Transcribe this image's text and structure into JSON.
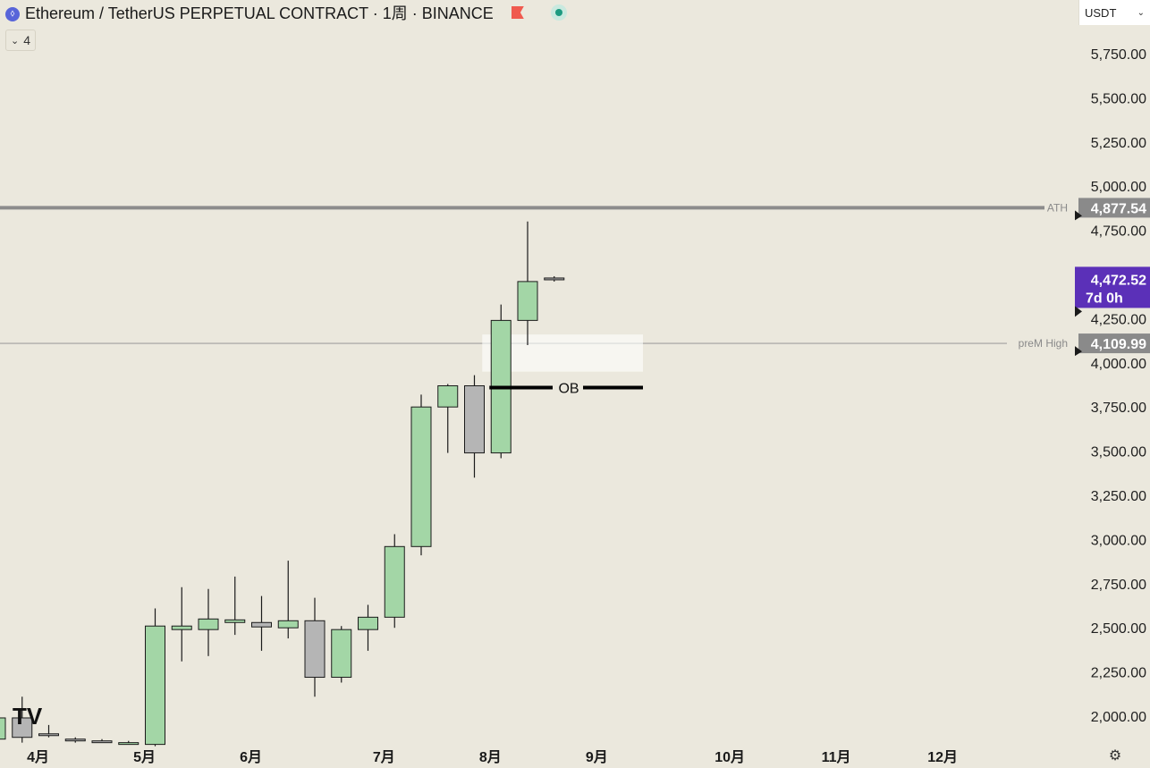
{
  "header": {
    "coin_icon_glyph": "⬨",
    "symbol_title": "Ethereum / TetherUS PERPETUAL CONTRACT · 1周 · BINANCE",
    "indicator_count": "4",
    "currency": "USDT",
    "icons": [
      "ethereum-coin-icon",
      "red-flag-icon",
      "market-status-icon",
      "chevron-down-icon",
      "settings-icon"
    ]
  },
  "chart_data": {
    "type": "candlestick",
    "timeframe": "1周",
    "colors": {
      "up": "#a3d6a6",
      "down": "#b5b5b5",
      "outline": "#1a1a1a",
      "last_price": "#5b30b8",
      "level_label": "#8a8a8a"
    },
    "candles": [
      {
        "open": 1870,
        "high": 2110,
        "low": 1850,
        "close": 1990
      },
      {
        "open": 1990,
        "high": 2110,
        "low": 1850,
        "close": 1880
      },
      {
        "open": 1900,
        "high": 1950,
        "low": 1880,
        "close": 1890
      },
      {
        "open": 1870,
        "high": 1880,
        "low": 1850,
        "close": 1860
      },
      {
        "open": 1860,
        "high": 1870,
        "low": 1850,
        "close": 1855
      },
      {
        "open": 1850,
        "high": 1860,
        "low": 1840,
        "close": 1850
      },
      {
        "open": 1840,
        "high": 2610,
        "low": 1830,
        "close": 2510
      },
      {
        "open": 2490,
        "high": 2730,
        "low": 2310,
        "close": 2510
      },
      {
        "open": 2490,
        "high": 2720,
        "low": 2340,
        "close": 2550
      },
      {
        "open": 2530,
        "high": 2790,
        "low": 2460,
        "close": 2545
      },
      {
        "open": 2530,
        "high": 2680,
        "low": 2370,
        "close": 2505
      },
      {
        "open": 2500,
        "high": 2880,
        "low": 2440,
        "close": 2540
      },
      {
        "open": 2540,
        "high": 2670,
        "low": 2110,
        "close": 2220
      },
      {
        "open": 2220,
        "high": 2510,
        "low": 2190,
        "close": 2490
      },
      {
        "open": 2490,
        "high": 2630,
        "low": 2370,
        "close": 2560
      },
      {
        "open": 2560,
        "high": 3030,
        "low": 2500,
        "close": 2960
      },
      {
        "open": 2960,
        "high": 3820,
        "low": 2910,
        "close": 3750
      },
      {
        "open": 3750,
        "high": 3880,
        "low": 3490,
        "close": 3870
      },
      {
        "open": 3870,
        "high": 3930,
        "low": 3350,
        "close": 3490
      },
      {
        "open": 3490,
        "high": 4330,
        "low": 3460,
        "close": 4240
      },
      {
        "open": 4240,
        "high": 4800,
        "low": 4100,
        "close": 4460
      },
      {
        "open": 4480,
        "high": 4490,
        "low": 4460,
        "close": 4472.52
      }
    ],
    "y_axis": {
      "ticks": [
        "2,000.00",
        "2,250.00",
        "2,500.00",
        "2,750.00",
        "3,000.00",
        "3,250.00",
        "3,500.00",
        "3,750.00",
        "4,000.00",
        "4,250.00",
        "4,500.00",
        "4,750.00",
        "5,000.00",
        "5,250.00",
        "5,500.00",
        "5,750.00"
      ],
      "range": [
        1870,
        5900
      ]
    },
    "x_axis": {
      "month_labels": [
        {
          "label": "4月",
          "candle_index": 1.6
        },
        {
          "label": "5月",
          "candle_index": 5.6
        },
        {
          "label": "6月",
          "candle_index": 9.6
        },
        {
          "label": "7月",
          "candle_index": 14.6
        },
        {
          "label": "8月",
          "candle_index": 18.6
        },
        {
          "label": "9月",
          "candle_index": 22.6
        },
        {
          "label": "10月",
          "candle_index": 27.6
        },
        {
          "label": "11月",
          "candle_index": 31.6
        },
        {
          "label": "12月",
          "candle_index": 35.6
        }
      ]
    },
    "levels": [
      {
        "name": "ATH",
        "price": 4877.54,
        "price_label": "4,877.54"
      },
      {
        "name": "preM  High",
        "price": 4109.99,
        "price_label": "4,109.99"
      }
    ],
    "last_price": {
      "price": 4472.52,
      "price_label": "4,472.52",
      "countdown": "7d 0h"
    },
    "order_block": {
      "label": "OB",
      "zone_high": 4160,
      "zone_low": 3950,
      "line_price": 3860,
      "start_candle": 19,
      "end_candle": 24
    },
    "logo_text": "TV"
  }
}
